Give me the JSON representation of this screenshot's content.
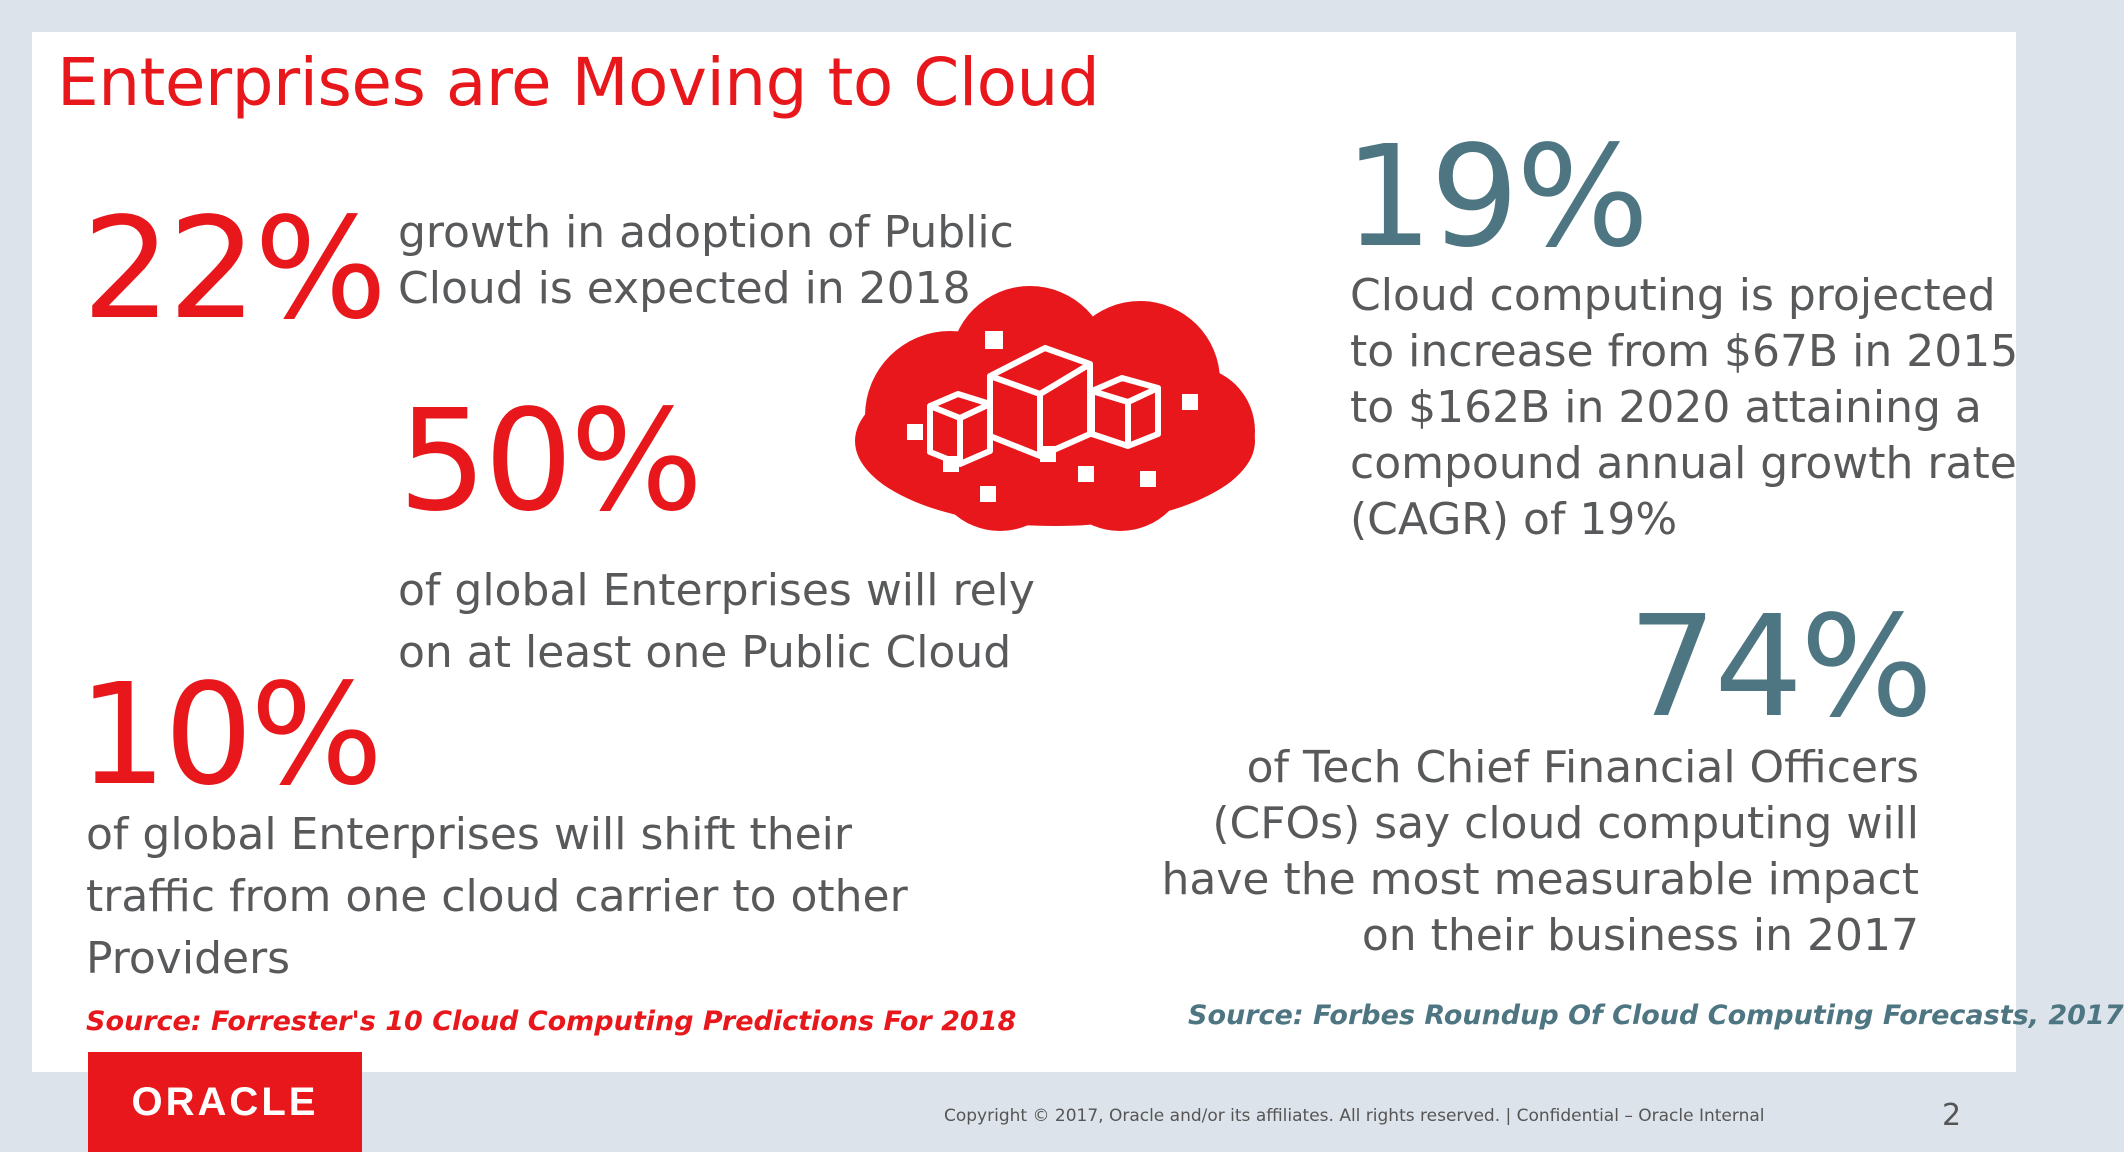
{
  "slide": {
    "title": "Enterprises are Moving to Cloud",
    "stats": {
      "s22": {
        "value": "22%",
        "text": [
          "growth in adoption of Public",
          "Cloud is expected in 2018"
        ]
      },
      "s50": {
        "value": "50%",
        "text": [
          "of global Enterprises will rely",
          "on at least one Public Cloud"
        ]
      },
      "s10": {
        "value": "10%",
        "text": [
          "of global Enterprises will shift their",
          "traffic from one cloud carrier to other",
          "Providers"
        ]
      },
      "s19": {
        "value": "19%",
        "text": [
          "Cloud computing is projected",
          "to increase from $67B in 2015",
          "to $162B in 2020 attaining a",
          "compound annual growth rate",
          "(CAGR) of 19%"
        ]
      },
      "s74": {
        "value": "74%",
        "text": [
          "of Tech Chief Financial Officers",
          "(CFOs) say cloud computing will",
          "have the most measurable impact",
          "on their business in 2017"
        ]
      }
    },
    "source_left": "Source: Forrester's 10 Cloud Computing Predictions For 2018",
    "source_right": "Source: Forbes Roundup Of Cloud Computing Forecasts, 2017",
    "cloud_icon": "cloud-cubes-icon",
    "colors": {
      "red": "#e8171b",
      "teal": "#4e7682",
      "gray_text": "#58595b"
    }
  },
  "footer": {
    "logo_text": "ORACLE",
    "copyright": "Copyright © 2017, Oracle and/or its affiliates. All rights reserved.  |  Confidential – Oracle Internal",
    "page_number": "2"
  }
}
